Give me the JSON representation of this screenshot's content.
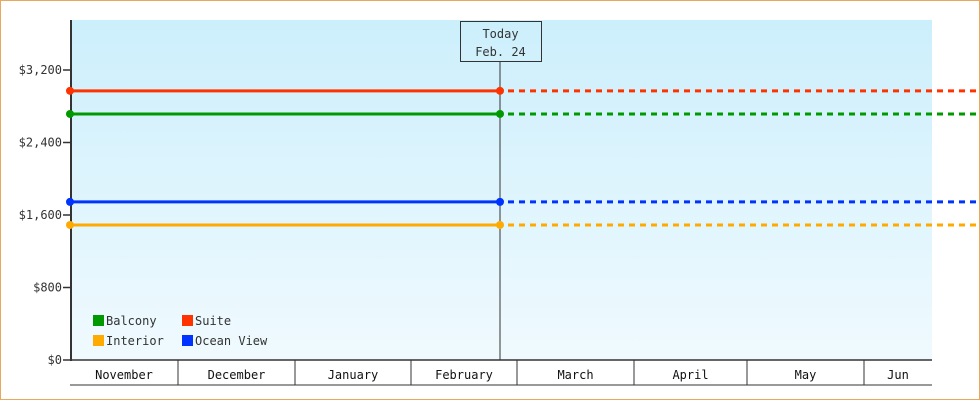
{
  "chart_data": {
    "type": "line",
    "title": "",
    "xlabel": "",
    "ylabel": "",
    "ylim": [
      0,
      3700
    ],
    "yticks": [
      0,
      800,
      1600,
      2400,
      3200
    ],
    "ytick_labels": [
      "$0",
      "$800",
      "$1,600",
      "$2,400",
      "$3,200"
    ],
    "categories": [
      "November",
      "December",
      "January",
      "February",
      "March",
      "April",
      "May",
      "Jun"
    ],
    "today_marker": {
      "line1": "Today",
      "line2": "Feb. 24"
    },
    "series": [
      {
        "name": "Suite",
        "color": "#ff3300",
        "value": 2970,
        "solid_until": "Feb. 24",
        "dashed_after": true
      },
      {
        "name": "Balcony",
        "color": "#009900",
        "value": 2715,
        "solid_until": "Feb. 24",
        "dashed_after": true
      },
      {
        "name": "Ocean View",
        "color": "#0033ff",
        "value": 1745,
        "solid_until": "Feb. 24",
        "dashed_after": true
      },
      {
        "name": "Interior",
        "color": "#ffaa00",
        "value": 1490,
        "solid_until": "Feb. 24",
        "dashed_after": true
      }
    ],
    "legend": {
      "placement": "bottom-left",
      "order": [
        "Balcony",
        "Suite",
        "Interior",
        "Ocean View"
      ]
    },
    "background_gradient": [
      "#cceffc",
      "#f0fafe"
    ],
    "grid": false
  }
}
